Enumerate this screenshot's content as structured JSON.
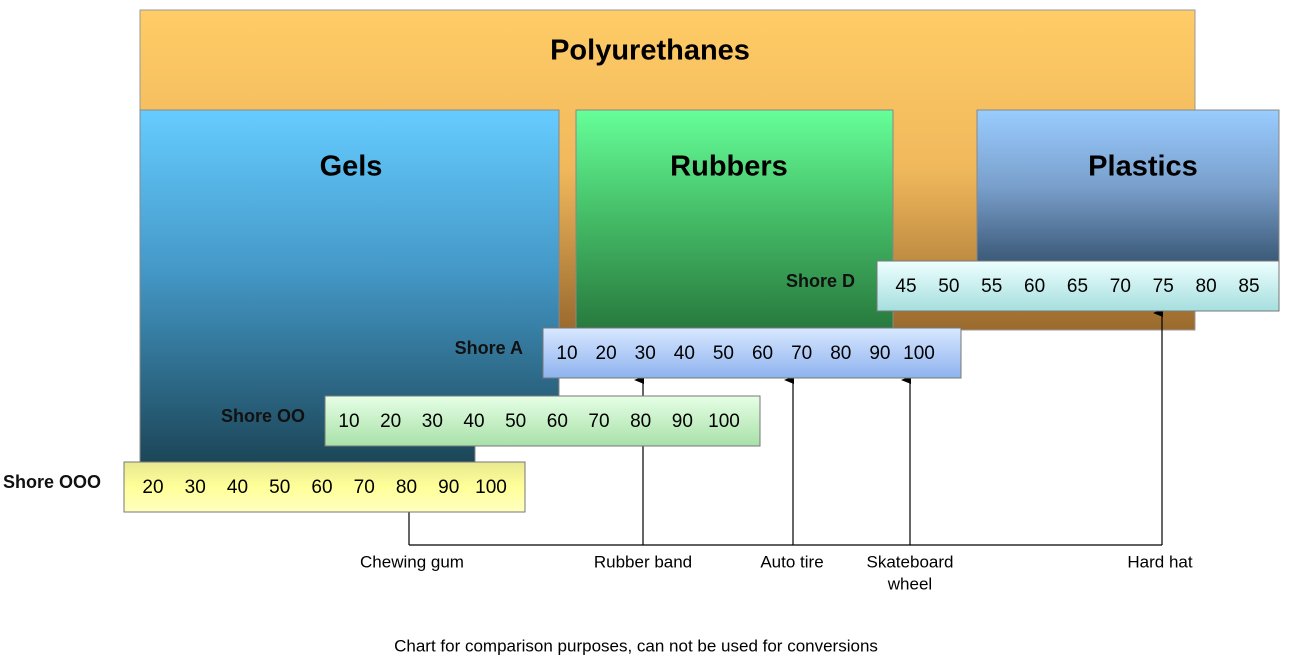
{
  "title": "Polyurethanes",
  "groups": [
    "Gels",
    "Rubbers",
    "Plastics"
  ],
  "scales": [
    {
      "name": "Shore OOO",
      "ticks": [
        20,
        30,
        40,
        50,
        60,
        70,
        80,
        90,
        100
      ]
    },
    {
      "name": "Shore OO",
      "ticks": [
        10,
        20,
        30,
        40,
        50,
        60,
        70,
        80,
        90,
        100
      ]
    },
    {
      "name": "Shore A",
      "ticks": [
        10,
        20,
        30,
        40,
        50,
        60,
        70,
        80,
        90,
        100
      ]
    },
    {
      "name": "Shore D",
      "ticks": [
        45,
        50,
        55,
        60,
        65,
        70,
        75,
        80,
        85
      ]
    }
  ],
  "examples": [
    {
      "lines": [
        "Chewing gum"
      ]
    },
    {
      "lines": [
        "Rubber band"
      ]
    },
    {
      "lines": [
        "Auto tire"
      ]
    },
    {
      "lines": [
        "Skateboard",
        "wheel"
      ]
    },
    {
      "lines": [
        "Hard hat"
      ]
    }
  ],
  "footnote": "Chart for comparison purposes, can not be used for conversions"
}
